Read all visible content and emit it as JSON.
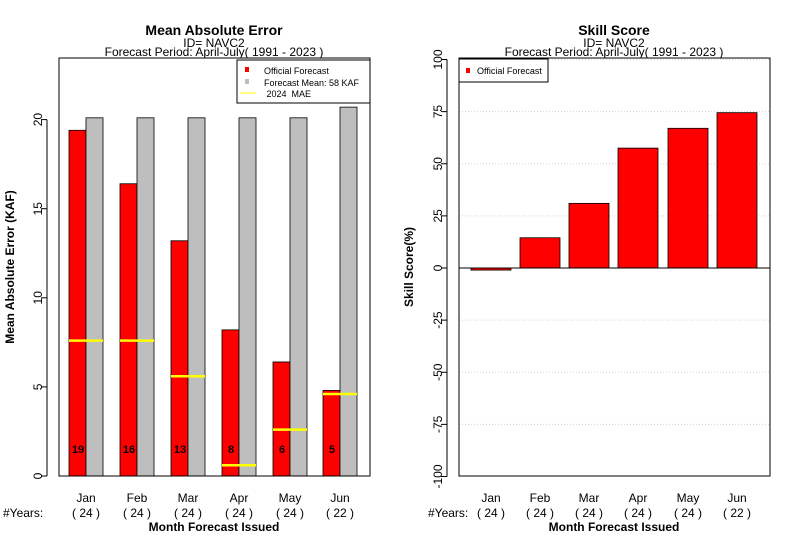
{
  "chart_data": [
    {
      "type": "bar",
      "title": "Mean Absolute Error",
      "subtitle1": "ID= NAVC2",
      "subtitle2": "Forecast Period: April-July( 1991 - 2023 )",
      "xlabel": "Month Forecast Issued",
      "ylabel": "Mean Absolute Error (KAF)",
      "years_label": "#Years:",
      "categories": [
        "Jan",
        "Feb",
        "Mar",
        "Apr",
        "May",
        "Jun"
      ],
      "years": [
        "( 24 )",
        "( 24 )",
        "( 24 )",
        "( 24 )",
        "( 24 )",
        "( 22 )"
      ],
      "ylim": [
        0,
        23.5
      ],
      "yticks": [
        0,
        5,
        10,
        15,
        20
      ],
      "series": [
        {
          "name": "Official Forecast",
          "color": "#ff0000",
          "values": [
            19.4,
            16.4,
            13.2,
            8.2,
            6.4,
            4.8
          ]
        },
        {
          "name": "Forecast Mean: 58 KAF",
          "color": "#bebebe",
          "values": [
            20.1,
            20.1,
            20.1,
            20.1,
            20.1,
            20.7
          ]
        }
      ],
      "mae_2024": {
        "name": " 2024  MAE",
        "color": "#ffff00",
        "values": [
          7.6,
          7.6,
          5.6,
          0.6,
          2.6,
          4.6
        ]
      },
      "bar_labels": [
        "19",
        "16",
        "13",
        "8",
        "6",
        "5"
      ],
      "legend_position": "top-right",
      "grid": false
    },
    {
      "type": "bar",
      "title": "Skill Score",
      "subtitle1": "ID= NAVC2",
      "subtitle2": "Forecast Period: April-July( 1991 - 2023 )",
      "xlabel": "Month Forecast Issued",
      "ylabel": "Skill Score(%)",
      "years_label": "#Years:",
      "categories": [
        "Jan",
        "Feb",
        "Mar",
        "Apr",
        "May",
        "Jun"
      ],
      "years": [
        "( 24 )",
        "( 24 )",
        "( 24 )",
        "( 24 )",
        "( 24 )",
        "( 22 )"
      ],
      "ylim": [
        -100,
        100
      ],
      "yticks": [
        -100,
        -75,
        -50,
        -25,
        0,
        25,
        50,
        75,
        100
      ],
      "series": [
        {
          "name": "Official Forecast",
          "color": "#ff0000",
          "values": [
            -1,
            14.5,
            31,
            57.5,
            67,
            74.5
          ]
        }
      ],
      "legend_position": "top-left",
      "grid": true
    }
  ]
}
